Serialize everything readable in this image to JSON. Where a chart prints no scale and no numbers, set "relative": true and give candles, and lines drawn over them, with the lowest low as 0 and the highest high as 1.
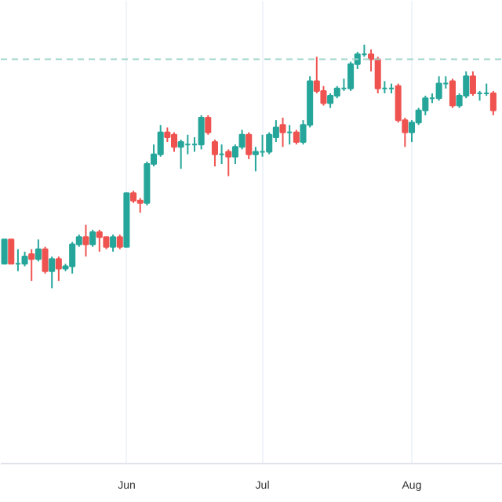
{
  "chart_data": {
    "type": "candlestick",
    "relative": true,
    "categories": [
      null,
      null,
      null,
      null,
      null,
      null,
      null,
      null,
      null,
      null,
      null,
      null,
      null,
      null,
      null,
      null,
      null,
      null,
      "Jun",
      null,
      null,
      null,
      null,
      null,
      null,
      null,
      null,
      null,
      null,
      null,
      null,
      null,
      null,
      null,
      null,
      null,
      null,
      null,
      "Jul",
      null,
      null,
      null,
      null,
      null,
      null,
      null,
      null,
      null,
      null,
      null,
      null,
      null,
      null,
      null,
      null,
      null,
      null,
      null,
      null,
      null,
      "Aug",
      null,
      null,
      null,
      null,
      null,
      null,
      null,
      null,
      null,
      null,
      null,
      null
    ],
    "ohlc": [
      [
        0.1,
        0.2,
        0.1,
        0.2
      ],
      [
        0.2,
        0.2,
        0.1,
        0.1
      ],
      [
        0.1,
        0.16,
        0.07,
        0.1
      ],
      [
        0.1,
        0.15,
        0.09,
        0.13
      ],
      [
        0.14,
        0.16,
        0.03,
        0.12
      ],
      [
        0.12,
        0.2,
        0.11,
        0.16
      ],
      [
        0.16,
        0.17,
        0.06,
        0.07
      ],
      [
        0.07,
        0.13,
        0,
        0.12
      ],
      [
        0.12,
        0.13,
        0.03,
        0.08
      ],
      [
        0.08,
        0.1,
        0.07,
        0.09
      ],
      [
        0.09,
        0.19,
        0.06,
        0.18
      ],
      [
        0.18,
        0.22,
        0.17,
        0.21
      ],
      [
        0.21,
        0.26,
        0.13,
        0.18
      ],
      [
        0.18,
        0.24,
        0.17,
        0.23
      ],
      [
        0.23,
        0.24,
        0.15,
        0.21
      ],
      [
        0.21,
        0.21,
        0.16,
        0.17
      ],
      [
        0.17,
        0.22,
        0.15,
        0.21
      ],
      [
        0.21,
        0.22,
        0.16,
        0.17
      ],
      [
        0.17,
        0.39,
        0.17,
        0.39
      ],
      [
        0.39,
        0.4,
        0.35,
        0.36
      ],
      [
        0.36,
        0.37,
        0.31,
        0.35
      ],
      [
        0.35,
        0.52,
        0.34,
        0.51
      ],
      [
        0.51,
        0.59,
        0.5,
        0.55
      ],
      [
        0.55,
        0.67,
        0.54,
        0.64
      ],
      [
        0.64,
        0.66,
        0.6,
        0.62
      ],
      [
        0.63,
        0.64,
        0.56,
        0.58
      ],
      [
        0.58,
        0.61,
        0.49,
        0.6
      ],
      [
        0.59,
        0.63,
        0.55,
        0.59
      ],
      [
        0.59,
        0.62,
        0.56,
        0.59
      ],
      [
        0.59,
        0.71,
        0.57,
        0.7
      ],
      [
        0.7,
        0.71,
        0.63,
        0.64
      ],
      [
        0.6,
        0.61,
        0.5,
        0.55
      ],
      [
        0.55,
        0.59,
        0.51,
        0.55
      ],
      [
        0.56,
        0.57,
        0.46,
        0.54
      ],
      [
        0.54,
        0.59,
        0.51,
        0.58
      ],
      [
        0.58,
        0.65,
        0.57,
        0.63
      ],
      [
        0.63,
        0.64,
        0.53,
        0.55
      ],
      [
        0.55,
        0.58,
        0.48,
        0.56
      ],
      [
        0.56,
        0.63,
        0.54,
        0.56
      ],
      [
        0.56,
        0.64,
        0.55,
        0.63
      ],
      [
        0.62,
        0.69,
        0.6,
        0.66
      ],
      [
        0.67,
        0.7,
        0.58,
        0.64
      ],
      [
        0.64,
        0.67,
        0.59,
        0.64
      ],
      [
        0.64,
        0.65,
        0.59,
        0.6
      ],
      [
        0.6,
        0.69,
        0.59,
        0.67
      ],
      [
        0.67,
        0.87,
        0.66,
        0.85
      ],
      [
        0.85,
        0.95,
        0.8,
        0.81
      ],
      [
        0.81,
        0.83,
        0.75,
        0.76
      ],
      [
        0.76,
        0.8,
        0.74,
        0.79
      ],
      [
        0.79,
        0.83,
        0.78,
        0.82
      ],
      [
        0.82,
        0.86,
        0.81,
        0.82
      ],
      [
        0.82,
        0.93,
        0.81,
        0.92
      ],
      [
        0.92,
        0.97,
        0.9,
        0.96
      ],
      [
        0.96,
        1,
        0.95,
        0.96
      ],
      [
        0.96,
        0.98,
        0.89,
        0.94
      ],
      [
        0.94,
        0.95,
        0.8,
        0.82
      ],
      [
        0.82,
        0.85,
        0.8,
        0.82
      ],
      [
        0.82,
        0.84,
        0.8,
        0.82
      ],
      [
        0.83,
        0.84,
        0.68,
        0.69
      ],
      [
        0.69,
        0.7,
        0.58,
        0.64
      ],
      [
        0.64,
        0.69,
        0.6,
        0.68
      ],
      [
        0.68,
        0.74,
        0.67,
        0.73
      ],
      [
        0.73,
        0.79,
        0.71,
        0.78
      ],
      [
        0.78,
        0.8,
        0.76,
        0.78
      ],
      [
        0.78,
        0.87,
        0.77,
        0.84
      ],
      [
        0.84,
        0.87,
        0.82,
        0.84
      ],
      [
        0.85,
        0.86,
        0.74,
        0.75
      ],
      [
        0.75,
        0.8,
        0.74,
        0.79
      ],
      [
        0.79,
        0.89,
        0.78,
        0.87
      ],
      [
        0.87,
        0.89,
        0.79,
        0.8
      ],
      [
        0.8,
        0.81,
        0.77,
        0.8
      ],
      [
        0.8,
        0.84,
        0.79,
        0.8
      ],
      [
        0.8,
        0.81,
        0.71,
        0.73
      ]
    ],
    "ref_lines": [
      {
        "axis": "y",
        "value": 0.94,
        "color": "#9fd6c9",
        "line_style": "dashed"
      }
    ],
    "grid": "x",
    "tick_labels": "x"
  }
}
